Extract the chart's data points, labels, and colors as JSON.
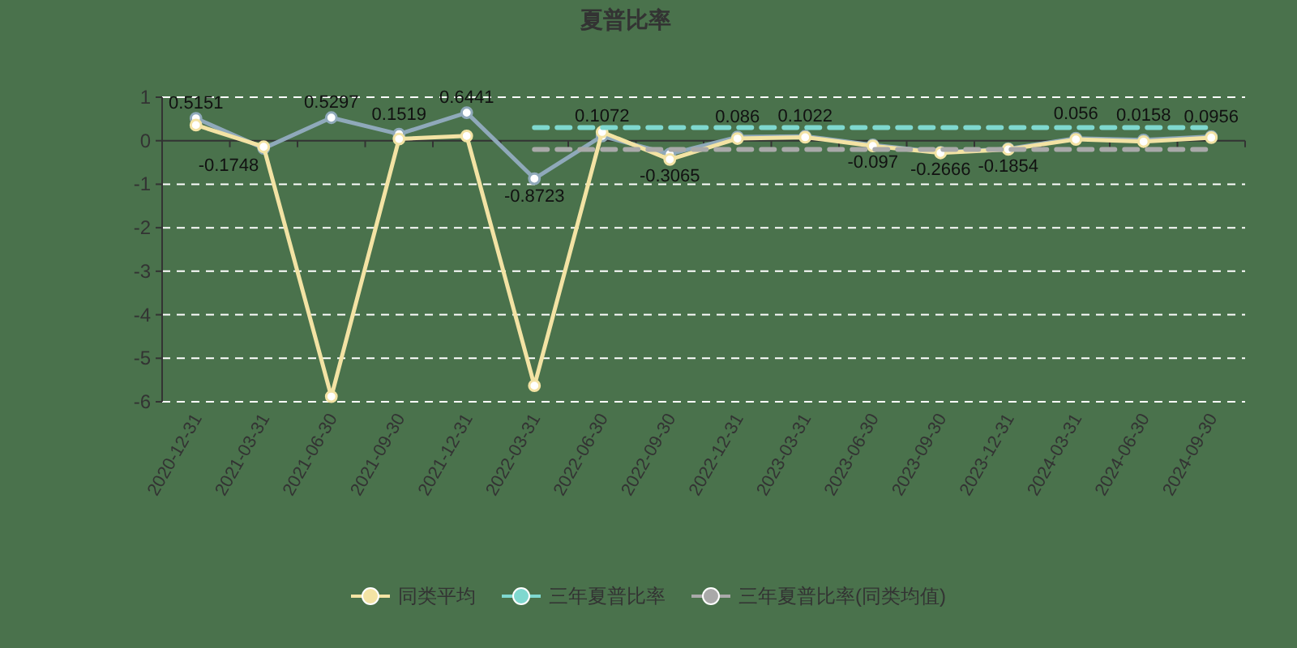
{
  "chart_data": {
    "type": "line",
    "title": "夏普比率",
    "categories": [
      "2020-12-31",
      "2021-03-31",
      "2021-06-30",
      "2021-09-30",
      "2021-12-31",
      "2022-03-31",
      "2022-06-30",
      "2022-09-30",
      "2022-12-31",
      "2023-03-31",
      "2023-06-30",
      "2023-09-30",
      "2023-12-31",
      "2024-03-31",
      "2024-06-30",
      "2024-09-30"
    ],
    "ylim": [
      -6,
      1
    ],
    "yticks": [
      -6,
      -5,
      -4,
      -3,
      -2,
      -1,
      0,
      1
    ],
    "grid": "y",
    "legend": "bottom",
    "marker": "circle",
    "line_style": "solid",
    "series": [
      {
        "color": "#8fa9ba",
        "values": [
          0.5151,
          -0.1748,
          0.5297,
          0.1519,
          0.6441,
          -0.8723,
          0.1072,
          -0.3065,
          0.086,
          0.1022,
          -0.097,
          -0.2666,
          -0.1854,
          0.056,
          0.0158,
          0.0956
        ],
        "value_labels": [
          "0.5151",
          "-0.1748",
          "0.5297",
          "0.1519",
          "0.6441",
          "-0.8723",
          "0.1072",
          "-0.3065",
          "0.086",
          "0.1022",
          "-0.097",
          "-0.2666",
          "-0.1854",
          "0.056",
          "0.0158",
          "0.0956"
        ]
      },
      {
        "name": "同类平均",
        "color": "#f3e3a4",
        "values": [
          0.36,
          -0.14,
          -5.88,
          0.04,
          0.11,
          -5.63,
          0.2,
          -0.43,
          0.05,
          0.08,
          -0.12,
          -0.28,
          -0.2,
          0.03,
          -0.02,
          0.07
        ]
      },
      {
        "name": "三年夏普比率",
        "color": "#7fd8cf",
        "line_style": "dashed",
        "marker": "none",
        "values": [
          null,
          null,
          null,
          null,
          null,
          0.3,
          0.3,
          0.3,
          0.3,
          0.3,
          0.3,
          0.3,
          0.3,
          0.3,
          0.3,
          0.3
        ]
      },
      {
        "name": "三年夏普比率(同类均值)",
        "color": "#a9a9a9",
        "line_style": "dashed",
        "marker": "none",
        "values": [
          null,
          null,
          null,
          null,
          null,
          -0.2,
          -0.2,
          -0.2,
          -0.2,
          -0.2,
          -0.2,
          -0.2,
          -0.2,
          -0.2,
          -0.2,
          -0.2
        ]
      }
    ]
  }
}
